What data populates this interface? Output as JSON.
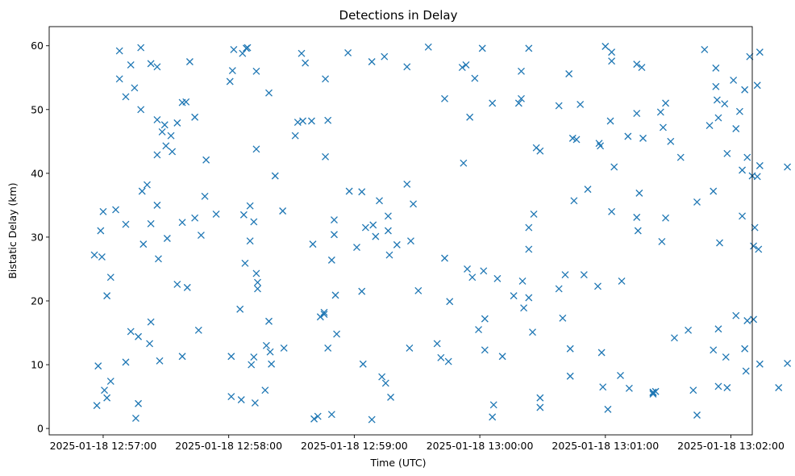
{
  "chart_data": {
    "type": "scatter",
    "title": "Detections in Delay",
    "xlabel": "Time (UTC)",
    "ylabel": "Bistatic Delay (km)",
    "marker": "x",
    "color": "#1f77b4",
    "grid": false,
    "xlim": [
      -0.43,
      5.17
    ],
    "ylim": [
      -1.0,
      63.0
    ],
    "x_units": "minutes after 2025-01-18 12:57:00 UTC",
    "xticks": [
      {
        "value": 0,
        "label": "2025-01-18 12:57:00"
      },
      {
        "value": 1,
        "label": "2025-01-18 12:58:00"
      },
      {
        "value": 2,
        "label": "2025-01-18 12:59:00"
      },
      {
        "value": 3,
        "label": "2025-01-18 13:00:00"
      },
      {
        "value": 4,
        "label": "2025-01-18 13:01:00"
      },
      {
        "value": 5,
        "label": "2025-01-18 13:02:00"
      }
    ],
    "yticks": [
      {
        "value": 0,
        "label": "0"
      },
      {
        "value": 10,
        "label": "10"
      },
      {
        "value": 20,
        "label": "20"
      },
      {
        "value": 30,
        "label": "30"
      },
      {
        "value": 40,
        "label": "40"
      },
      {
        "value": 50,
        "label": "50"
      },
      {
        "value": 60,
        "label": "60"
      }
    ],
    "points": [
      [
        -0.07,
        27.2
      ],
      [
        -0.05,
        3.6
      ],
      [
        -0.04,
        9.8
      ],
      [
        -0.02,
        31.0
      ],
      [
        0.0,
        34.0
      ],
      [
        -0.01,
        26.9
      ],
      [
        0.01,
        6.0
      ],
      [
        0.03,
        20.8
      ],
      [
        0.03,
        4.8
      ],
      [
        0.06,
        23.7
      ],
      [
        0.06,
        7.4
      ],
      [
        0.1,
        34.3
      ],
      [
        0.13,
        59.2
      ],
      [
        0.13,
        54.8
      ],
      [
        0.18,
        52.0
      ],
      [
        0.18,
        32.0
      ],
      [
        0.18,
        10.4
      ],
      [
        0.22,
        57.0
      ],
      [
        0.22,
        15.2
      ],
      [
        0.25,
        53.4
      ],
      [
        0.26,
        1.6
      ],
      [
        0.28,
        3.9
      ],
      [
        0.28,
        14.4
      ],
      [
        0.3,
        59.7
      ],
      [
        0.3,
        50.0
      ],
      [
        0.31,
        37.2
      ],
      [
        0.32,
        28.9
      ],
      [
        0.35,
        38.2
      ],
      [
        0.37,
        13.3
      ],
      [
        0.38,
        57.2
      ],
      [
        0.38,
        16.7
      ],
      [
        0.38,
        32.1
      ],
      [
        0.43,
        56.7
      ],
      [
        0.43,
        48.4
      ],
      [
        0.43,
        42.9
      ],
      [
        0.43,
        35.0
      ],
      [
        0.44,
        26.6
      ],
      [
        0.45,
        10.6
      ],
      [
        0.47,
        46.5
      ],
      [
        0.49,
        47.6
      ],
      [
        0.5,
        44.3
      ],
      [
        0.51,
        29.8
      ],
      [
        0.54,
        45.9
      ],
      [
        0.55,
        43.4
      ],
      [
        0.59,
        47.9
      ],
      [
        0.59,
        22.6
      ],
      [
        0.63,
        51.1
      ],
      [
        0.63,
        32.3
      ],
      [
        0.63,
        11.3
      ],
      [
        0.66,
        51.2
      ],
      [
        0.67,
        22.1
      ],
      [
        0.69,
        57.5
      ],
      [
        0.73,
        48.8
      ],
      [
        0.73,
        33.0
      ],
      [
        0.76,
        15.4
      ],
      [
        0.78,
        30.3
      ],
      [
        0.81,
        36.4
      ],
      [
        0.82,
        42.1
      ],
      [
        0.9,
        33.6
      ],
      [
        1.01,
        54.4
      ],
      [
        1.02,
        11.3
      ],
      [
        1.02,
        5.0
      ],
      [
        1.04,
        59.4
      ],
      [
        1.03,
        56.1
      ],
      [
        1.09,
        18.7
      ],
      [
        1.1,
        4.5
      ],
      [
        1.11,
        58.8
      ],
      [
        1.12,
        33.5
      ],
      [
        1.13,
        25.9
      ],
      [
        1.14,
        59.6
      ],
      [
        1.15,
        59.7
      ],
      [
        1.17,
        34.9
      ],
      [
        1.17,
        29.4
      ],
      [
        1.18,
        10.0
      ],
      [
        1.2,
        32.4
      ],
      [
        1.2,
        11.2
      ],
      [
        1.21,
        4.0
      ],
      [
        1.22,
        56.0
      ],
      [
        1.22,
        43.8
      ],
      [
        1.22,
        24.3
      ],
      [
        1.23,
        22.9
      ],
      [
        1.23,
        21.9
      ],
      [
        1.29,
        6.0
      ],
      [
        1.3,
        13.0
      ],
      [
        1.32,
        52.6
      ],
      [
        1.32,
        16.8
      ],
      [
        1.33,
        12.0
      ],
      [
        1.34,
        10.1
      ],
      [
        1.37,
        39.6
      ],
      [
        1.43,
        34.1
      ],
      [
        1.44,
        12.6
      ],
      [
        1.53,
        45.9
      ],
      [
        1.55,
        48.0
      ],
      [
        1.58,
        58.8
      ],
      [
        1.59,
        48.2
      ],
      [
        1.61,
        57.3
      ],
      [
        1.66,
        48.2
      ],
      [
        1.67,
        28.9
      ],
      [
        1.68,
        1.5
      ],
      [
        1.71,
        1.9
      ],
      [
        1.73,
        17.5
      ],
      [
        1.76,
        18.2
      ],
      [
        1.76,
        17.9
      ],
      [
        1.77,
        54.8
      ],
      [
        1.77,
        42.6
      ],
      [
        1.79,
        48.3
      ],
      [
        1.79,
        12.6
      ],
      [
        1.82,
        26.4
      ],
      [
        1.82,
        2.2
      ],
      [
        1.84,
        32.7
      ],
      [
        1.84,
        30.4
      ],
      [
        1.85,
        20.9
      ],
      [
        1.86,
        14.8
      ],
      [
        1.95,
        58.9
      ],
      [
        1.96,
        37.2
      ],
      [
        2.02,
        28.4
      ],
      [
        2.06,
        37.1
      ],
      [
        2.06,
        21.5
      ],
      [
        2.07,
        10.1
      ],
      [
        2.09,
        31.5
      ],
      [
        2.14,
        57.5
      ],
      [
        2.14,
        1.4
      ],
      [
        2.15,
        31.9
      ],
      [
        2.17,
        30.1
      ],
      [
        2.2,
        35.7
      ],
      [
        2.22,
        8.1
      ],
      [
        2.24,
        58.3
      ],
      [
        2.25,
        7.1
      ],
      [
        2.27,
        33.3
      ],
      [
        2.27,
        31.0
      ],
      [
        2.28,
        27.2
      ],
      [
        2.29,
        4.9
      ],
      [
        2.34,
        28.8
      ],
      [
        2.42,
        56.7
      ],
      [
        2.42,
        38.3
      ],
      [
        2.44,
        12.6
      ],
      [
        2.45,
        29.4
      ],
      [
        2.47,
        35.2
      ],
      [
        2.51,
        21.6
      ],
      [
        2.59,
        59.8
      ],
      [
        2.66,
        13.3
      ],
      [
        2.69,
        11.1
      ],
      [
        2.72,
        51.7
      ],
      [
        2.72,
        26.7
      ],
      [
        2.75,
        10.5
      ],
      [
        2.76,
        19.9
      ],
      [
        2.86,
        56.6
      ],
      [
        2.87,
        41.6
      ],
      [
        2.89,
        57.0
      ],
      [
        2.9,
        25.0
      ],
      [
        2.92,
        48.8
      ],
      [
        2.94,
        23.7
      ],
      [
        2.96,
        54.9
      ],
      [
        2.99,
        15.5
      ],
      [
        3.02,
        59.6
      ],
      [
        3.03,
        24.7
      ],
      [
        3.04,
        17.2
      ],
      [
        3.04,
        12.3
      ],
      [
        3.1,
        51.0
      ],
      [
        3.1,
        1.8
      ],
      [
        3.11,
        3.7
      ],
      [
        3.14,
        23.5
      ],
      [
        3.18,
        11.3
      ],
      [
        3.27,
        20.8
      ],
      [
        3.31,
        51.0
      ],
      [
        3.33,
        51.7
      ],
      [
        3.33,
        56.0
      ],
      [
        3.34,
        23.1
      ],
      [
        3.35,
        18.9
      ],
      [
        3.39,
        59.6
      ],
      [
        3.39,
        31.5
      ],
      [
        3.39,
        28.1
      ],
      [
        3.39,
        20.5
      ],
      [
        3.42,
        15.1
      ],
      [
        3.43,
        33.6
      ],
      [
        3.45,
        44.0
      ],
      [
        3.48,
        43.5
      ],
      [
        3.48,
        4.8
      ],
      [
        3.48,
        3.3
      ],
      [
        3.63,
        21.9
      ],
      [
        3.63,
        50.6
      ],
      [
        3.66,
        17.3
      ],
      [
        3.68,
        24.1
      ],
      [
        3.71,
        55.6
      ],
      [
        3.72,
        12.5
      ],
      [
        3.72,
        8.2
      ],
      [
        3.74,
        45.5
      ],
      [
        3.75,
        35.7
      ],
      [
        3.77,
        45.3
      ],
      [
        3.8,
        50.8
      ],
      [
        3.83,
        24.1
      ],
      [
        3.86,
        37.5
      ],
      [
        3.94,
        22.3
      ],
      [
        3.95,
        44.7
      ],
      [
        3.96,
        44.3
      ],
      [
        3.97,
        11.9
      ],
      [
        3.98,
        6.5
      ],
      [
        4.0,
        59.9
      ],
      [
        4.02,
        3.0
      ],
      [
        4.04,
        48.2
      ],
      [
        4.05,
        57.6
      ],
      [
        4.05,
        59.0
      ],
      [
        4.05,
        34.0
      ],
      [
        4.07,
        41.0
      ],
      [
        4.13,
        23.1
      ],
      [
        4.12,
        8.3
      ],
      [
        4.18,
        45.8
      ],
      [
        4.19,
        6.3
      ],
      [
        4.25,
        57.1
      ],
      [
        4.25,
        49.4
      ],
      [
        4.25,
        33.1
      ],
      [
        4.26,
        31.0
      ],
      [
        4.27,
        36.9
      ],
      [
        4.3,
        45.5
      ],
      [
        4.29,
        56.6
      ],
      [
        4.38,
        5.6
      ],
      [
        4.38,
        5.7
      ],
      [
        4.38,
        5.4
      ],
      [
        4.4,
        5.8
      ],
      [
        4.44,
        49.6
      ],
      [
        4.45,
        29.3
      ],
      [
        4.46,
        47.2
      ],
      [
        4.48,
        51.0
      ],
      [
        4.48,
        33.0
      ],
      [
        4.52,
        45.0
      ],
      [
        4.55,
        14.2
      ],
      [
        4.6,
        42.5
      ],
      [
        4.66,
        15.4
      ],
      [
        4.7,
        6.0
      ],
      [
        4.73,
        35.5
      ],
      [
        4.73,
        2.1
      ],
      [
        4.79,
        59.4
      ],
      [
        4.83,
        47.5
      ],
      [
        4.86,
        37.2
      ],
      [
        4.86,
        12.3
      ],
      [
        4.88,
        56.5
      ],
      [
        4.88,
        53.6
      ],
      [
        4.89,
        51.5
      ],
      [
        4.9,
        48.7
      ],
      [
        4.9,
        15.6
      ],
      [
        4.9,
        6.6
      ],
      [
        4.91,
        29.1
      ],
      [
        4.95,
        50.9
      ],
      [
        4.97,
        43.1
      ],
      [
        4.96,
        11.2
      ],
      [
        4.97,
        6.4
      ],
      [
        5.02,
        54.6
      ],
      [
        5.04,
        47.0
      ],
      [
        5.04,
        17.7
      ],
      [
        5.07,
        49.7
      ],
      [
        5.09,
        40.5
      ],
      [
        5.09,
        33.3
      ],
      [
        5.11,
        12.5
      ],
      [
        5.11,
        53.1
      ],
      [
        5.12,
        9.0
      ],
      [
        5.13,
        16.9
      ],
      [
        5.13,
        42.5
      ],
      [
        5.15,
        58.3
      ],
      [
        5.17,
        39.6
      ],
      [
        5.18,
        28.6
      ],
      [
        5.19,
        31.5
      ],
      [
        5.18,
        17.1
      ],
      [
        5.21,
        53.8
      ],
      [
        5.21,
        39.5
      ],
      [
        5.23,
        59.0
      ],
      [
        5.23,
        41.2
      ],
      [
        5.22,
        28.1
      ],
      [
        5.23,
        10.1
      ],
      [
        5.38,
        6.4
      ],
      [
        5.45,
        41.0
      ],
      [
        5.45,
        10.2
      ]
    ]
  }
}
